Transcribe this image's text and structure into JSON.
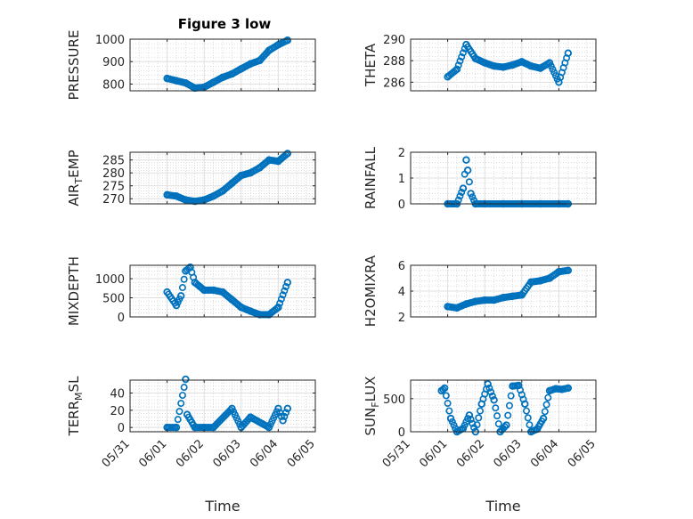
{
  "figure": {
    "title": "Figure 3 low",
    "colors": {
      "marker": "#0072BD",
      "axis": "#262626",
      "grid": "#dfdfdf"
    }
  },
  "chart_data": [
    {
      "type": "scatter",
      "title": "Figure 3 low",
      "ylabel": "PRESSURE",
      "xlabel": "",
      "xlim": [
        "05/31",
        "06/05"
      ],
      "ylim": [
        770,
        1000
      ],
      "yticks": [
        800,
        900,
        1000
      ],
      "grid": true,
      "minor_grid": true,
      "ylabel_sub": null,
      "x": [
        "06/01 00:00",
        "06/01 06:00",
        "06/01 12:00",
        "06/01 18:00",
        "06/02 00:00",
        "06/02 06:00",
        "06/02 12:00",
        "06/02 18:00",
        "06/03 00:00",
        "06/03 06:00",
        "06/03 12:00",
        "06/03 18:00",
        "06/04 00:00",
        "06/04 06:00"
      ],
      "y": [
        825,
        815,
        805,
        782,
        786,
        808,
        830,
        845,
        868,
        890,
        905,
        950,
        975,
        995
      ]
    },
    {
      "type": "scatter",
      "title": "",
      "ylabel": "THETA",
      "xlabel": "",
      "xlim": [
        "05/31",
        "06/05"
      ],
      "ylim": [
        285.2,
        290
      ],
      "yticks": [
        286,
        288,
        290
      ],
      "grid": true,
      "minor_grid": true,
      "ylabel_sub": null,
      "x": [
        "06/01 00:00",
        "06/01 06:00",
        "06/01 12:00",
        "06/01 18:00",
        "06/02 00:00",
        "06/02 06:00",
        "06/02 12:00",
        "06/02 18:00",
        "06/03 00:00",
        "06/03 06:00",
        "06/03 12:00",
        "06/03 18:00",
        "06/04 00:00",
        "06/04 06:00"
      ],
      "y": [
        286.5,
        287.2,
        289.5,
        288.2,
        287.8,
        287.5,
        287.4,
        287.6,
        287.9,
        287.5,
        287.3,
        287.8,
        286.0,
        288.7
      ]
    },
    {
      "type": "scatter",
      "title": "",
      "ylabel": "AIR_TEMP",
      "xlabel": "",
      "xlim": [
        "05/31",
        "06/05"
      ],
      "ylim": [
        268,
        288
      ],
      "yticks": [
        270,
        275,
        280,
        285
      ],
      "grid": true,
      "minor_grid": true,
      "ylabel_sub": {
        "main": "AIR",
        "sub": "T",
        "tail": "EMP"
      },
      "x": [
        "06/01 00:00",
        "06/01 06:00",
        "06/01 12:00",
        "06/01 18:00",
        "06/02 00:00",
        "06/02 06:00",
        "06/02 12:00",
        "06/02 18:00",
        "06/03 00:00",
        "06/03 06:00",
        "06/03 12:00",
        "06/03 18:00",
        "06/04 00:00",
        "06/04 06:00"
      ],
      "y": [
        271.5,
        271,
        269.5,
        269,
        269.5,
        271,
        273,
        276,
        279,
        280,
        282,
        285,
        284.5,
        287.5
      ]
    },
    {
      "type": "scatter",
      "title": "",
      "ylabel": "RAINFALL",
      "xlabel": "",
      "xlim": [
        "05/31",
        "06/05"
      ],
      "ylim": [
        0,
        2
      ],
      "yticks": [
        0,
        1,
        2
      ],
      "grid": true,
      "minor_grid": true,
      "ylabel_sub": null,
      "x": [
        "06/01 00:00",
        "06/01 06:00",
        "06/01 10:00",
        "06/01 12:00",
        "06/01 13:00",
        "06/01 15:00",
        "06/01 18:00",
        "06/02 00:00",
        "06/02 12:00",
        "06/03 00:00",
        "06/03 12:00",
        "06/04 00:00",
        "06/04 06:00"
      ],
      "y": [
        0,
        0,
        0.6,
        1.7,
        1.3,
        0.4,
        0,
        0,
        0,
        0,
        0,
        0,
        0
      ]
    },
    {
      "type": "scatter",
      "title": "",
      "ylabel": "MIXDEPTH",
      "xlabel": "",
      "xlim": [
        "05/31",
        "06/05"
      ],
      "ylim": [
        0,
        1350
      ],
      "yticks": [
        0,
        500,
        1000
      ],
      "grid": true,
      "minor_grid": true,
      "ylabel_sub": null,
      "x": [
        "06/01 00:00",
        "06/01 06:00",
        "06/01 09:00",
        "06/01 12:00",
        "06/01 15:00",
        "06/01 18:00",
        "06/02 00:00",
        "06/02 06:00",
        "06/02 12:00",
        "06/02 18:00",
        "06/03 00:00",
        "06/03 06:00",
        "06/03 12:00",
        "06/03 18:00",
        "06/04 00:00",
        "06/04 06:00"
      ],
      "y": [
        650,
        300,
        550,
        1200,
        1300,
        900,
        700,
        700,
        650,
        450,
        250,
        150,
        60,
        60,
        250,
        900
      ]
    },
    {
      "type": "scatter",
      "title": "",
      "ylabel": "H2OMIXRA",
      "xlabel": "",
      "xlim": [
        "05/31",
        "06/05"
      ],
      "ylim": [
        2,
        6
      ],
      "yticks": [
        2,
        4,
        6
      ],
      "grid": true,
      "minor_grid": true,
      "ylabel_sub": null,
      "x": [
        "06/01 00:00",
        "06/01 06:00",
        "06/01 12:00",
        "06/01 18:00",
        "06/02 00:00",
        "06/02 06:00",
        "06/02 12:00",
        "06/02 18:00",
        "06/03 00:00",
        "06/03 06:00",
        "06/03 12:00",
        "06/03 18:00",
        "06/04 00:00",
        "06/04 06:00"
      ],
      "y": [
        2.8,
        2.7,
        3.0,
        3.2,
        3.3,
        3.3,
        3.5,
        3.6,
        3.7,
        4.7,
        4.8,
        5.0,
        5.5,
        5.6
      ]
    },
    {
      "type": "scatter",
      "title": "",
      "ylabel": "TERR_MSL",
      "xlabel": "Time",
      "xlim": [
        "05/31",
        "06/05"
      ],
      "ylim": [
        -5,
        55
      ],
      "yticks": [
        0,
        20,
        40
      ],
      "xticks": [
        "05/31",
        "06/01",
        "06/02",
        "06/03",
        "06/04",
        "06/05"
      ],
      "grid": true,
      "minor_grid": true,
      "ylabel_sub": {
        "main": "TERR",
        "sub": "M",
        "tail": "SL"
      },
      "x": [
        "06/01 00:00",
        "06/01 06:00",
        "06/01 12:00",
        "06/01 13:00",
        "06/01 18:00",
        "06/02 00:00",
        "06/02 06:00",
        "06/02 18:00",
        "06/03 00:00",
        "06/03 06:00",
        "06/03 18:00",
        "06/04 00:00",
        "06/04 03:00",
        "06/04 06:00"
      ],
      "y": [
        0,
        0,
        56,
        15,
        0,
        0,
        0,
        22,
        0,
        12,
        0,
        22,
        8,
        22
      ]
    },
    {
      "type": "scatter",
      "title": "",
      "ylabel": "SUN_FLUX",
      "xlabel": "Time",
      "xlim": [
        "05/31",
        "06/05"
      ],
      "ylim": [
        0,
        780
      ],
      "yticks": [
        0,
        500
      ],
      "xticks": [
        "05/31",
        "06/01",
        "06/02",
        "06/03",
        "06/04",
        "06/05"
      ],
      "grid": true,
      "minor_grid": true,
      "ylabel_sub": {
        "main": "SUN",
        "sub": "F",
        "tail": "LUX"
      },
      "x": [
        "05/31 20:00",
        "05/31 22:00",
        "06/01 02:00",
        "06/01 06:00",
        "06/01 10:00",
        "06/01 14:00",
        "06/01 18:00",
        "06/01 22:00",
        "06/02 02:00",
        "06/02 06:00",
        "06/02 10:00",
        "06/02 14:00",
        "06/02 18:00",
        "06/02 22:00",
        "06/03 02:00",
        "06/03 06:00",
        "06/03 10:00",
        "06/03 14:00",
        "06/03 18:00",
        "06/03 22:00",
        "06/04 02:00",
        "06/04 06:00"
      ],
      "y": [
        620,
        660,
        200,
        0,
        50,
        250,
        0,
        420,
        720,
        480,
        0,
        100,
        690,
        700,
        420,
        0,
        40,
        200,
        620,
        650,
        640,
        660
      ]
    }
  ]
}
